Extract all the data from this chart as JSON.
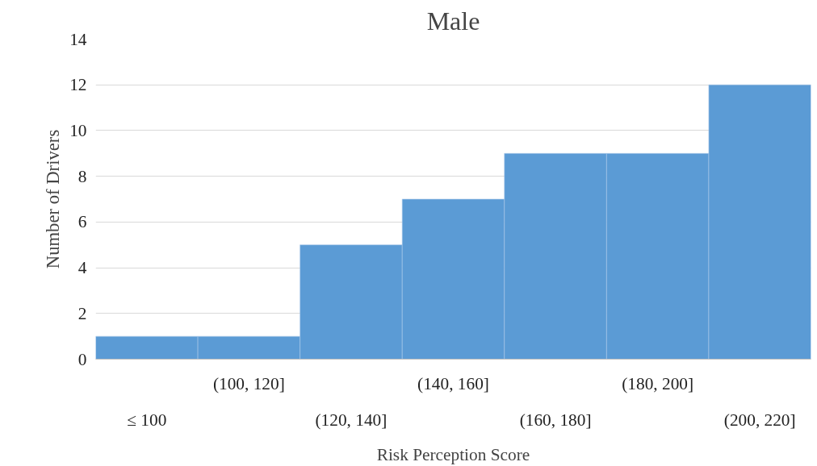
{
  "chart_data": {
    "type": "bar",
    "title": "Male",
    "xlabel": "Risk Perception Score",
    "ylabel": "Number of Drivers",
    "categories": [
      "≤ 100",
      "(100, 120]",
      "(120, 140]",
      "(140, 160]",
      "(160, 180]",
      "(180, 200]",
      "(200, 220]"
    ],
    "values": [
      1,
      1,
      5,
      7,
      9,
      9,
      12
    ],
    "color": "#5b9bd5",
    "ylim": [
      0,
      14
    ],
    "yticks": [
      0,
      2,
      4,
      6,
      8,
      10,
      12,
      14
    ],
    "grid": "y"
  }
}
